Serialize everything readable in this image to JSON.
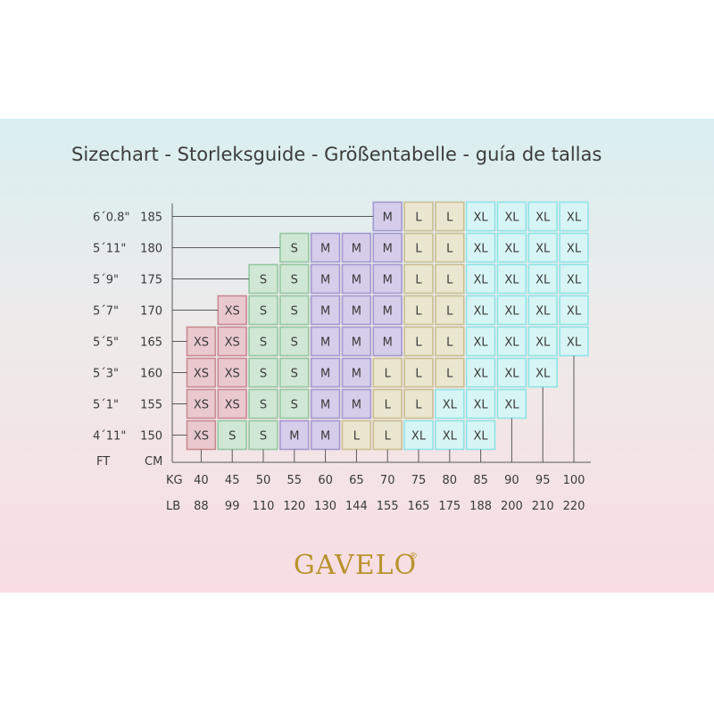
{
  "chart_data": {
    "type": "table",
    "title": "Sizechart - Storleksguide - Größentabelle - guía de tallas",
    "row_header": "FT",
    "col_header_cm": "CM",
    "kg_label": "KG",
    "lb_label": "LB",
    "heights_ft": [
      "6´0.8\"",
      "5´11\"",
      "5´9\"",
      "5´7\"",
      "5´5\"",
      "5´3\"",
      "5´1\"",
      "4´11\""
    ],
    "heights_cm": [
      "185",
      "180",
      "175",
      "170",
      "165",
      "160",
      "155",
      "150"
    ],
    "weights_kg": [
      "40",
      "45",
      "50",
      "55",
      "60",
      "65",
      "70",
      "75",
      "80",
      "85",
      "90",
      "95",
      "100"
    ],
    "weights_lb": [
      "88",
      "99",
      "110",
      "120",
      "130",
      "144",
      "155",
      "165",
      "175",
      "188",
      "200",
      "210",
      "220"
    ],
    "rows": [
      [
        "",
        "",
        "",
        "",
        "",
        "",
        "M",
        "L",
        "L",
        "XL",
        "XL",
        "XL",
        "XL"
      ],
      [
        "",
        "",
        "",
        "S",
        "M",
        "M",
        "M",
        "L",
        "L",
        "XL",
        "XL",
        "XL",
        "XL"
      ],
      [
        "",
        "",
        "S",
        "S",
        "M",
        "M",
        "M",
        "L",
        "L",
        "XL",
        "XL",
        "XL",
        "XL"
      ],
      [
        "",
        "XS",
        "S",
        "S",
        "M",
        "M",
        "M",
        "L",
        "L",
        "XL",
        "XL",
        "XL",
        "XL"
      ],
      [
        "XS",
        "XS",
        "S",
        "S",
        "M",
        "M",
        "M",
        "L",
        "L",
        "XL",
        "XL",
        "XL",
        "XL"
      ],
      [
        "XS",
        "XS",
        "S",
        "S",
        "M",
        "M",
        "L",
        "L",
        "L",
        "XL",
        "XL",
        "XL",
        ""
      ],
      [
        "XS",
        "XS",
        "S",
        "S",
        "M",
        "M",
        "L",
        "L",
        "XL",
        "XL",
        "XL",
        "",
        ""
      ],
      [
        "XS",
        "S",
        "S",
        "M",
        "M",
        "L",
        "L",
        "XL",
        "XL",
        "XL",
        "",
        "",
        ""
      ]
    ],
    "size_colors": {
      "XS": {
        "fill": "#e9c9cd",
        "stroke": "#c98a93"
      },
      "S": {
        "fill": "#cfe7d4",
        "stroke": "#96c7a2"
      },
      "M": {
        "fill": "#d5cdea",
        "stroke": "#a598cf"
      },
      "L": {
        "fill": "#ebe6cf",
        "stroke": "#c9bf93"
      },
      "XL": {
        "fill": "#d8f5f5",
        "stroke": "#8fe4e6"
      }
    }
  },
  "brand": {
    "logo_text": "GAVELO",
    "logo_mark": "®",
    "logo_color": "#b8932e"
  }
}
